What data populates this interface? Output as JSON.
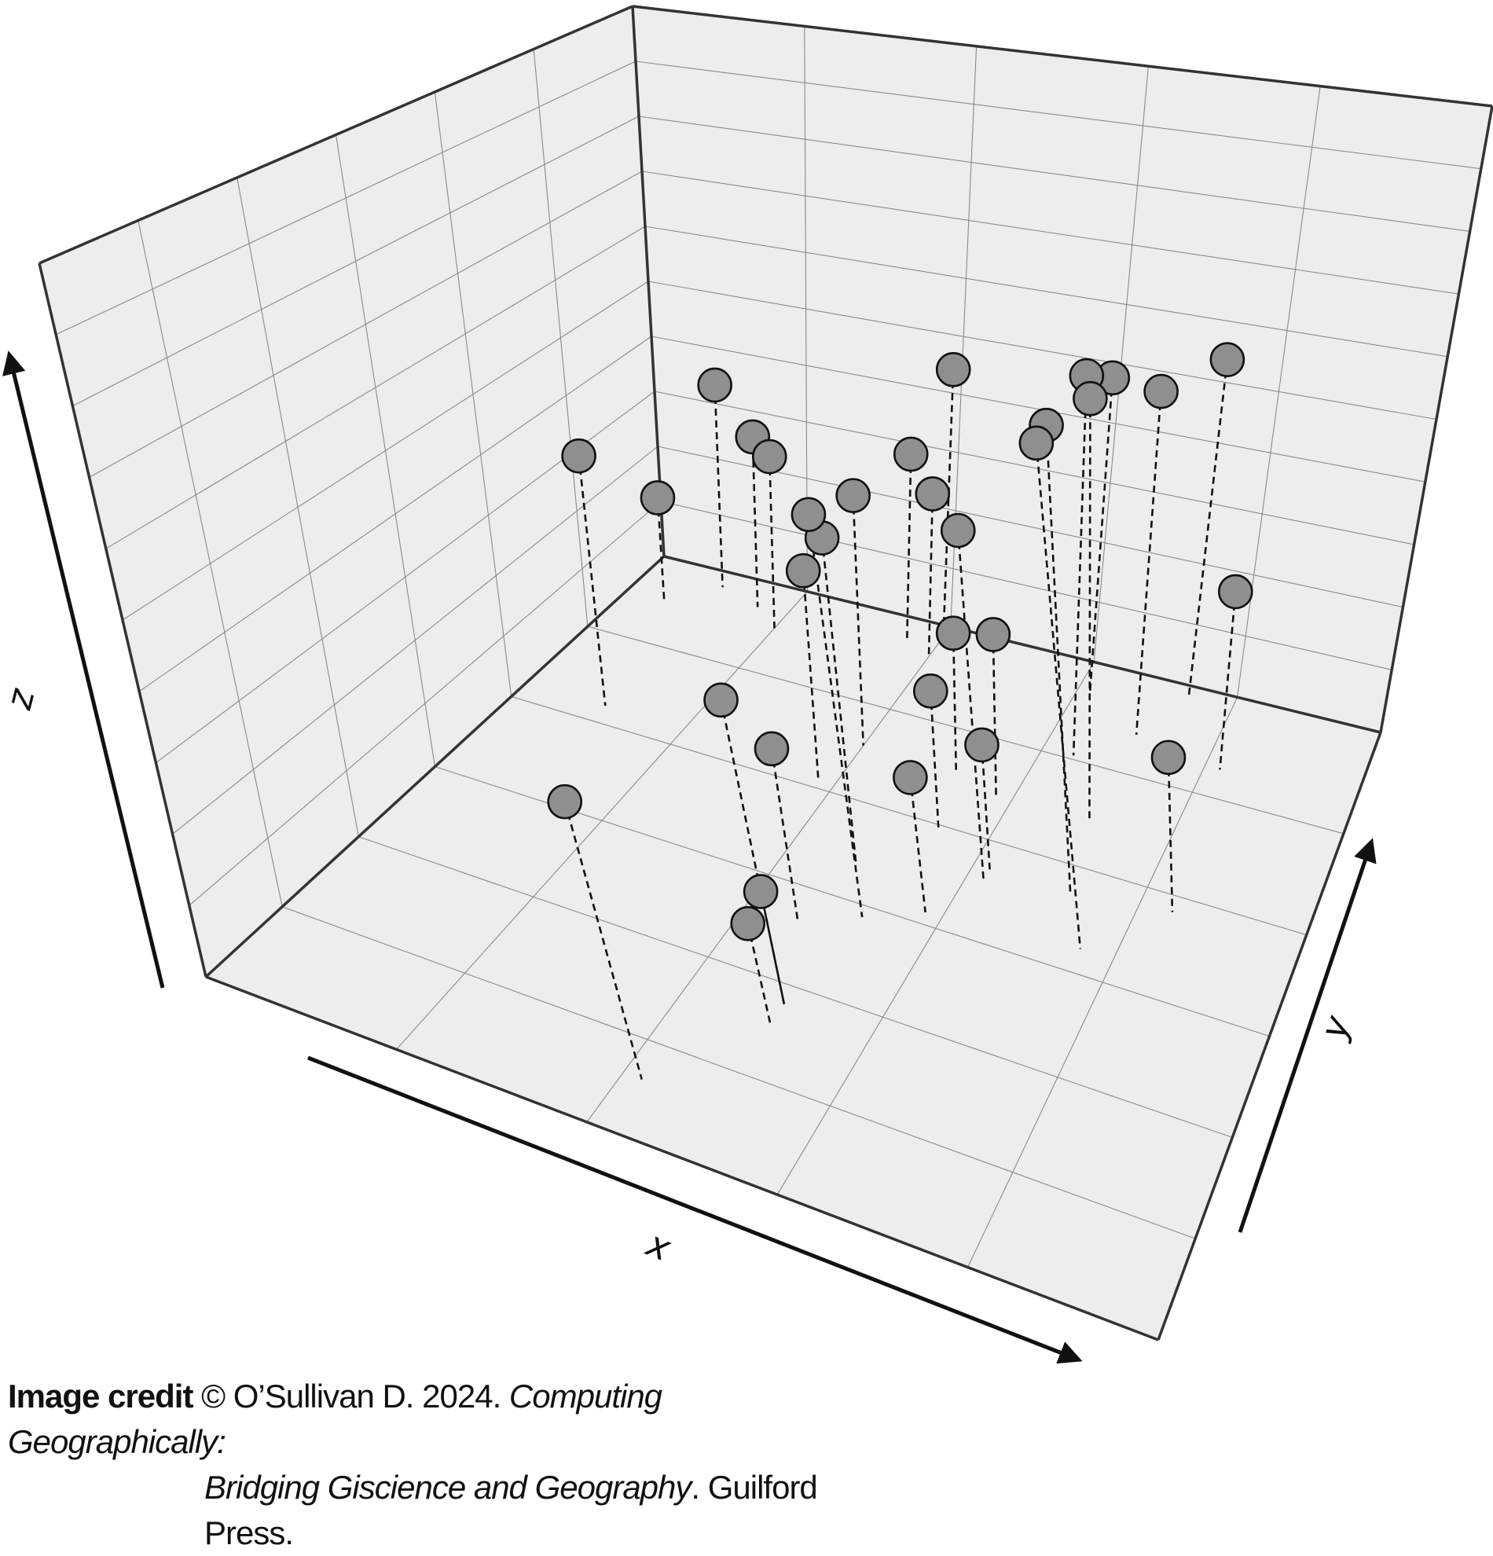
{
  "chart_data": {
    "type": "scatter",
    "title": "",
    "axes": {
      "x_label": "x",
      "y_label": "y",
      "z_label": "z"
    },
    "grid": true,
    "drop_lines": true,
    "marker_color": "#8f8f8f",
    "panel_color": "#ededed",
    "points": [
      {
        "x": 0.76,
        "y": 0.54,
        "z": 0.93
      },
      {
        "x": 0.72,
        "y": 0.62,
        "z": 0.84
      },
      {
        "x": 0.52,
        "y": 0.48,
        "z": 0.71
      },
      {
        "x": 0.7,
        "y": 0.74,
        "z": 0.74
      },
      {
        "x": 0.64,
        "y": 0.84,
        "z": 0.65
      },
      {
        "x": 0.62,
        "y": 0.6,
        "z": 0.62
      },
      {
        "x": 0.7,
        "y": 0.9,
        "z": 0.58
      },
      {
        "x": 0.74,
        "y": 0.98,
        "z": 0.56
      },
      {
        "x": 0.48,
        "y": 0.56,
        "z": 0.57
      },
      {
        "x": 0.62,
        "y": 0.94,
        "z": 0.54
      },
      {
        "x": 0.4,
        "y": 0.98,
        "z": 0.46
      },
      {
        "x": 0.5,
        "y": 0.3,
        "z": 0.54
      },
      {
        "x": 0.4,
        "y": 0.76,
        "z": 0.43
      },
      {
        "x": 0.1,
        "y": 0.7,
        "z": 0.42
      },
      {
        "x": 0.16,
        "y": 0.95,
        "z": 0.3
      },
      {
        "x": 0.36,
        "y": 0.96,
        "z": 0.32
      },
      {
        "x": 0.42,
        "y": 0.1,
        "z": 0.48
      },
      {
        "x": 0.38,
        "y": 0.68,
        "z": 0.36
      },
      {
        "x": 0.4,
        "y": 0.94,
        "z": 0.28
      },
      {
        "x": 0.1,
        "y": 0.97,
        "z": 0.36
      },
      {
        "x": 0.2,
        "y": 0.92,
        "z": 0.3
      },
      {
        "x": 0.46,
        "y": 0.44,
        "z": 0.3
      },
      {
        "x": 0.54,
        "y": 0.66,
        "z": 0.24
      },
      {
        "x": 0.52,
        "y": 0.76,
        "z": 0.24
      },
      {
        "x": 0.82,
        "y": 0.88,
        "z": 0.3
      },
      {
        "x": 0.84,
        "y": 0.64,
        "z": 0.28
      },
      {
        "x": 0.5,
        "y": 0.3,
        "z": 0.2
      },
      {
        "x": 0.58,
        "y": 0.52,
        "z": 0.24
      },
      {
        "x": 0.5,
        "y": 0.26,
        "z": 0.18
      },
      {
        "x": 0.58,
        "y": 0.74,
        "z": 0.28
      },
      {
        "x": 0.62,
        "y": 0.62,
        "z": 0.22
      },
      {
        "x": 0.05,
        "y": 0.92,
        "z": 0.18
      }
    ]
  },
  "caption": {
    "label": "Image credit",
    "text1": " © O’Sullivan D. 2024. ",
    "title1": "Computing Geographically:",
    "title2": "Bridging Giscience and Geography",
    "text2": ". Guilford Press."
  }
}
